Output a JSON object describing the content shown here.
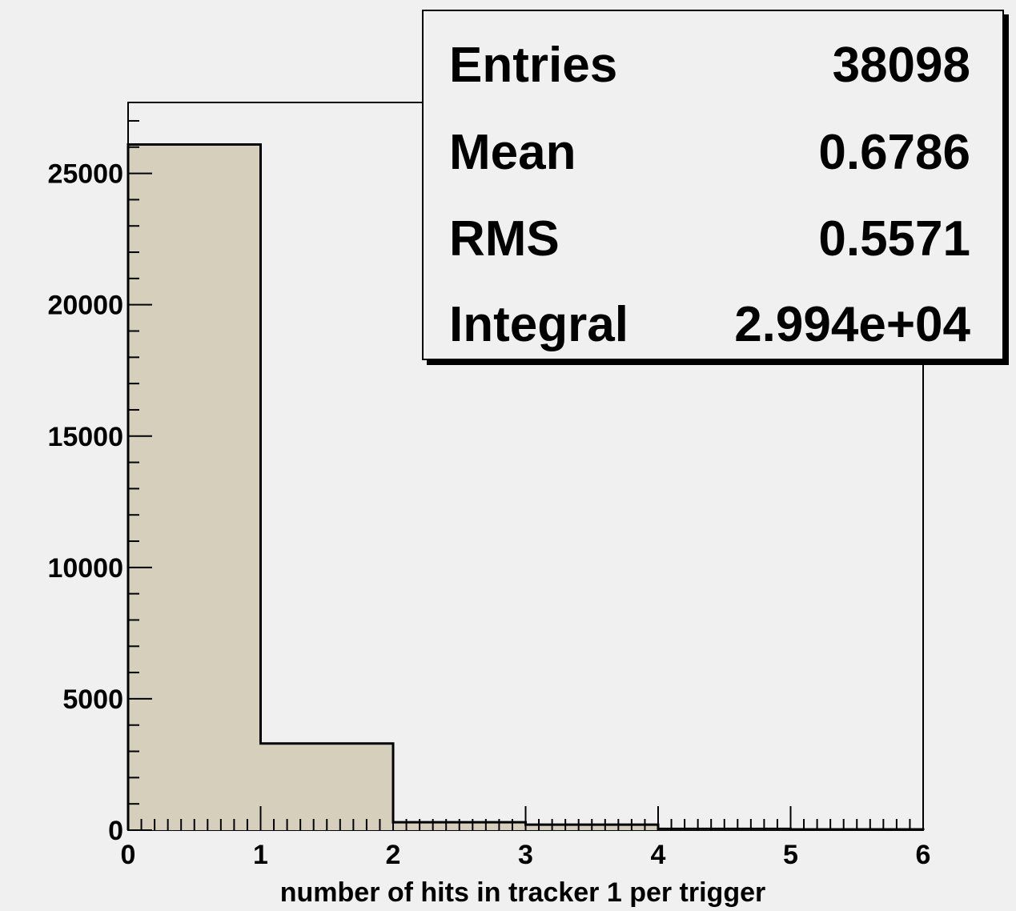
{
  "chart_data": {
    "type": "histogram",
    "xlabel": "number of hits in tracker 1 per trigger",
    "ylabel": "",
    "xlim": [
      0,
      6
    ],
    "ylim": [
      0,
      27700
    ],
    "x_ticks": [
      "0",
      "1",
      "2",
      "3",
      "4",
      "5",
      "6"
    ],
    "y_ticks": [
      "0",
      "5000",
      "10000",
      "15000",
      "20000",
      "25000"
    ],
    "bins": [
      {
        "x0": 0,
        "x1": 1,
        "value": 26100
      },
      {
        "x0": 1,
        "x1": 2,
        "value": 3300
      },
      {
        "x0": 2,
        "x1": 3,
        "value": 300
      },
      {
        "x0": 3,
        "x1": 4,
        "value": 210
      },
      {
        "x0": 4,
        "x1": 5,
        "value": 50
      },
      {
        "x0": 5,
        "x1": 6,
        "value": 30
      }
    ],
    "fill_color": "#d6cfbb",
    "stats": [
      {
        "label": "Entries",
        "value": "38098"
      },
      {
        "label": "Mean",
        "value": "0.6786"
      },
      {
        "label": "RMS",
        "value": "0.5571"
      },
      {
        "label": "Integral",
        "value": "2.994e+04"
      }
    ]
  }
}
